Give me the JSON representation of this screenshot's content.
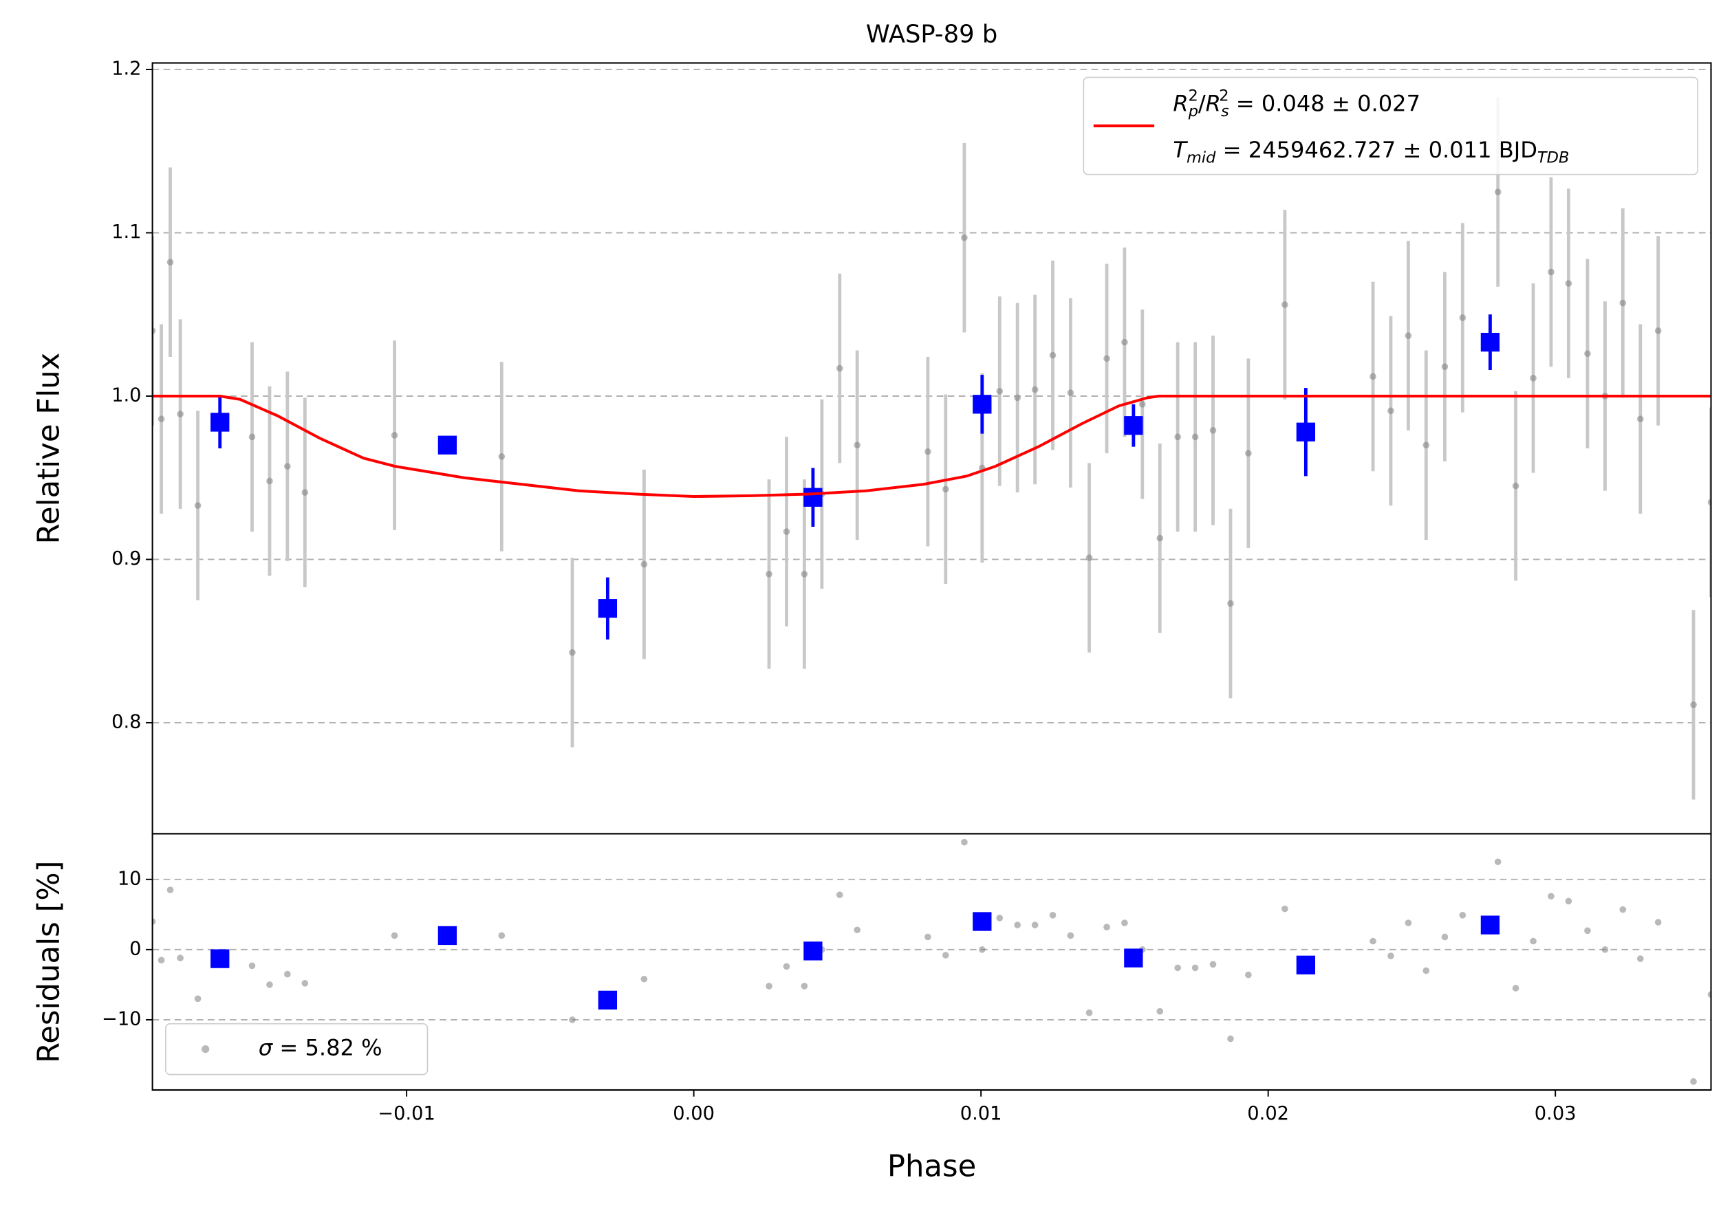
{
  "chart_data": [
    {
      "type": "scatter",
      "title": "WASP-89 b",
      "ylabel": "Relative Flux",
      "xlim": [
        -0.01885,
        0.03542
      ],
      "ylim": [
        0.732,
        1.204
      ],
      "yticks": [
        0.8,
        0.9,
        {
          "value": 1,
          "label": "1.0"
        },
        1.1,
        1.2
      ],
      "grid": true,
      "legend_loc": "upper right",
      "series": [
        {
          "style": "points",
          "color": "#808080",
          "x": [
            -0.01885,
            -0.01854,
            -0.01823,
            -0.01788,
            -0.01727,
            -0.01538,
            -0.01477,
            -0.01415,
            -0.01354,
            -0.01042,
            -0.00669,
            -0.00423,
            -0.00173,
            0.00262,
            0.00323,
            0.00385,
            0.00446,
            0.00508,
            0.00569,
            0.00815,
            0.00877,
            0.00942,
            0.01004,
            0.01065,
            0.01127,
            0.01188,
            0.0125,
            0.01312,
            0.01377,
            0.01438,
            0.015,
            0.01562,
            0.01623,
            0.01685,
            0.01746,
            0.01808,
            0.01869,
            0.01931,
            0.02058,
            0.02365,
            0.02427,
            0.02488,
            0.0255,
            0.02615,
            0.02677,
            0.028,
            0.02862,
            0.02923,
            0.02985,
            0.03046,
            0.03112,
            0.03173,
            0.03235,
            0.03296,
            0.03358,
            0.03481,
            0.03542
          ],
          "values": [
            1.04,
            0.986,
            1.082,
            0.989,
            0.933,
            0.975,
            0.948,
            0.957,
            0.941,
            0.976,
            0.963,
            0.843,
            0.897,
            0.891,
            0.917,
            0.891,
            0.94,
            1.017,
            0.97,
            0.966,
            0.943,
            1.097,
            0.956,
            1.003,
            0.999,
            1.004,
            1.025,
            1.002,
            0.901,
            1.023,
            1.033,
            0.995,
            0.913,
            0.975,
            0.975,
            0.979,
            0.873,
            0.965,
            1.056,
            1.012,
            0.991,
            1.037,
            0.97,
            1.018,
            1.048,
            1.125,
            0.945,
            1.011,
            1.076,
            1.069,
            1.026,
            1.0,
            1.057,
            0.986,
            1.04,
            0.811,
            0.935
          ],
          "errors": [
            0.058,
            0.058,
            0.058,
            0.058,
            0.058,
            0.058,
            0.058,
            0.058,
            0.058,
            0.058,
            0.058,
            0.058,
            0.058,
            0.058,
            0.058,
            0.058,
            0.058,
            0.058,
            0.058,
            0.058,
            0.058,
            0.058,
            0.058,
            0.058,
            0.058,
            0.058,
            0.058,
            0.058,
            0.058,
            0.058,
            0.058,
            0.058,
            0.058,
            0.058,
            0.058,
            0.058,
            0.058,
            0.058,
            0.058,
            0.058,
            0.058,
            0.058,
            0.058,
            0.058,
            0.058,
            0.058,
            0.058,
            0.058,
            0.058,
            0.058,
            0.058,
            0.058,
            0.058,
            0.058,
            0.058,
            0.058,
            0.058
          ]
        },
        {
          "style": "squares",
          "color": "#0000ff",
          "x": [
            -0.0165,
            -0.00858,
            -0.003,
            0.00415,
            0.01004,
            0.01531,
            0.02131,
            0.02773
          ],
          "values": [
            0.984,
            0.97,
            0.87,
            0.938,
            0.995,
            0.982,
            0.978,
            1.033
          ],
          "errors": [
            0.016,
            0.005,
            0.019,
            0.018,
            0.018,
            0.013,
            0.027,
            0.017
          ]
        },
        {
          "style": "line",
          "color": "#ff0000",
          "legend": [
            [
              {
                "text": "R",
                "style": "italic"
              },
              {
                "text": "p",
                "style": "sub-italic"
              },
              {
                "text": "2",
                "style": "sup"
              },
              {
                "text": "/",
                "style": "plain"
              },
              {
                "text": "R",
                "style": "italic"
              },
              {
                "text": "s",
                "style": "sub-italic"
              },
              {
                "text": "2",
                "style": "sup"
              },
              {
                "text": " = 0.048 ± 0.027",
                "style": "plain"
              }
            ],
            [
              {
                "text": "T",
                "style": "italic"
              },
              {
                "text": "mid",
                "style": "sub-italic"
              },
              {
                "text": " = 2459462.727 ± 0.011 BJD",
                "style": "plain"
              },
              {
                "text": "TDB",
                "style": "sub-italic"
              }
            ]
          ],
          "x": [
            -0.01885,
            -0.0165,
            -0.0158,
            -0.0145,
            -0.013,
            -0.0115,
            -0.0104,
            -0.008,
            -0.006,
            -0.004,
            -0.002,
            0.0,
            0.002,
            0.004,
            0.006,
            0.008,
            0.0095,
            0.0105,
            0.012,
            0.0135,
            0.0148,
            0.0158,
            0.0162,
            0.03542
          ],
          "values": [
            1.0,
            1.0,
            0.998,
            0.988,
            0.974,
            0.962,
            0.957,
            0.95,
            0.946,
            0.942,
            0.94,
            0.9385,
            0.939,
            0.94,
            0.942,
            0.946,
            0.951,
            0.957,
            0.969,
            0.983,
            0.994,
            0.999,
            1.0,
            1.0
          ]
        }
      ]
    },
    {
      "type": "scatter",
      "ylabel": "Residuals [%]",
      "xlabel": "Phase",
      "xlim": [
        -0.01885,
        0.03542
      ],
      "ylim": [
        -20,
        16.5
      ],
      "xticks": [
        {
          "value": -0.01,
          "label": "−0.01"
        },
        {
          "value": 0,
          "label": "0.00"
        },
        0.01,
        0.02,
        0.03
      ],
      "yticks": [
        {
          "value": -10,
          "label": "−10"
        },
        0,
        10
      ],
      "grid": true,
      "legend_loc": "lower left",
      "series": [
        {
          "style": "points",
          "color": "#808080",
          "legend": [
            [
              {
                "text": "σ",
                "style": "italic"
              },
              {
                "text": " = 5.82 %",
                "style": "plain"
              }
            ]
          ],
          "x": [
            -0.01885,
            -0.01854,
            -0.01823,
            -0.01788,
            -0.01727,
            -0.01538,
            -0.01477,
            -0.01415,
            -0.01354,
            -0.01042,
            -0.00669,
            -0.00423,
            -0.00173,
            0.00262,
            0.00323,
            0.00385,
            0.00446,
            0.00508,
            0.00569,
            0.00815,
            0.00877,
            0.00942,
            0.01004,
            0.01065,
            0.01127,
            0.01188,
            0.0125,
            0.01312,
            0.01377,
            0.01438,
            0.015,
            0.01562,
            0.01623,
            0.01685,
            0.01746,
            0.01808,
            0.01869,
            0.01931,
            0.02058,
            0.02365,
            0.02427,
            0.02488,
            0.0255,
            0.02615,
            0.02677,
            0.028,
            0.02862,
            0.02923,
            0.02985,
            0.03046,
            0.03112,
            0.03173,
            0.03235,
            0.03296,
            0.03358,
            0.03481,
            0.03542
          ],
          "values": [
            4,
            -1.5,
            8.5,
            -1.2,
            -7,
            -2.3,
            -5,
            -3.5,
            -4.8,
            2,
            2,
            -10,
            -4.2,
            -5.2,
            -2.4,
            -5.2,
            0,
            7.8,
            2.8,
            1.8,
            -0.8,
            15.3,
            0,
            4.5,
            3.5,
            3.5,
            4.9,
            2,
            -9,
            3.2,
            3.8,
            0,
            -8.8,
            -2.6,
            -2.6,
            -2.1,
            -12.7,
            -3.6,
            5.8,
            1.2,
            -0.9,
            3.8,
            -3,
            1.8,
            4.9,
            12.5,
            -5.5,
            1.2,
            7.6,
            6.9,
            2.7,
            0,
            5.7,
            -1.3,
            3.9,
            -18.8,
            -6.4
          ]
        },
        {
          "style": "squares",
          "color": "#0000ff",
          "x": [
            -0.0165,
            -0.00858,
            -0.003,
            0.00415,
            0.01004,
            0.01531,
            0.02131,
            0.02773
          ],
          "values": [
            -1.3,
            2,
            -7.2,
            -0.2,
            4,
            -1.2,
            -2.2,
            3.5
          ]
        }
      ]
    }
  ]
}
